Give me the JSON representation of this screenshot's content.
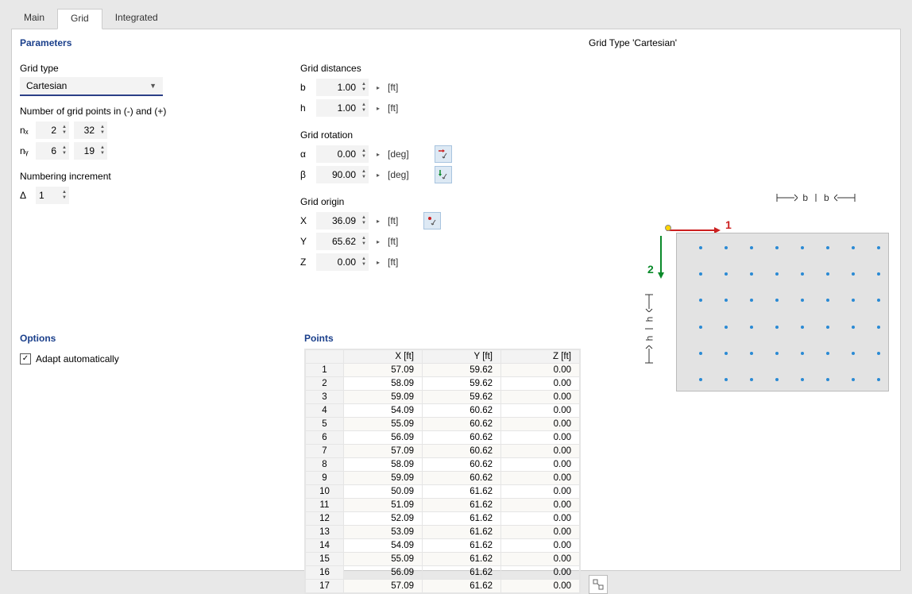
{
  "tabs": {
    "main": "Main",
    "grid": "Grid",
    "integrated": "Integrated",
    "active": "grid"
  },
  "parameters": {
    "title": "Parameters",
    "grid_type_label": "Grid type",
    "grid_type_value": "Cartesian",
    "num_points_label": "Number of grid points in (-) and (+)",
    "nx_label": "nₓ",
    "nx_neg": "2",
    "nx_pos": "32",
    "ny_label": "nᵧ",
    "ny_neg": "6",
    "ny_pos": "19",
    "increment_label": "Numbering increment",
    "delta_label": "Δ",
    "delta_val": "1",
    "distances_label": "Grid distances",
    "b_label": "b",
    "b_val": "1.00",
    "b_unit": "[ft]",
    "h_label": "h",
    "h_val": "1.00",
    "h_unit": "[ft]",
    "rotation_label": "Grid rotation",
    "alpha_label": "α",
    "alpha_val": "0.00",
    "alpha_unit": "[deg]",
    "beta_label": "β",
    "beta_val": "90.00",
    "beta_unit": "[deg]",
    "origin_label": "Grid origin",
    "x_label": "X",
    "x_val": "36.09",
    "x_unit": "[ft]",
    "y_label": "Y",
    "y_val": "65.62",
    "y_unit": "[ft]",
    "z_label": "Z",
    "z_val": "0.00",
    "z_unit": "[ft]"
  },
  "options": {
    "title": "Options",
    "adapt_label": "Adapt automatically",
    "adapt_checked": true
  },
  "points": {
    "title": "Points",
    "col_x": "X [ft]",
    "col_y": "Y [ft]",
    "col_z": "Z [ft]",
    "rows": [
      {
        "n": "1",
        "x": "57.09",
        "y": "59.62",
        "z": "0.00"
      },
      {
        "n": "2",
        "x": "58.09",
        "y": "59.62",
        "z": "0.00"
      },
      {
        "n": "3",
        "x": "59.09",
        "y": "59.62",
        "z": "0.00"
      },
      {
        "n": "4",
        "x": "54.09",
        "y": "60.62",
        "z": "0.00"
      },
      {
        "n": "5",
        "x": "55.09",
        "y": "60.62",
        "z": "0.00"
      },
      {
        "n": "6",
        "x": "56.09",
        "y": "60.62",
        "z": "0.00"
      },
      {
        "n": "7",
        "x": "57.09",
        "y": "60.62",
        "z": "0.00"
      },
      {
        "n": "8",
        "x": "58.09",
        "y": "60.62",
        "z": "0.00"
      },
      {
        "n": "9",
        "x": "59.09",
        "y": "60.62",
        "z": "0.00"
      },
      {
        "n": "10",
        "x": "50.09",
        "y": "61.62",
        "z": "0.00"
      },
      {
        "n": "11",
        "x": "51.09",
        "y": "61.62",
        "z": "0.00"
      },
      {
        "n": "12",
        "x": "52.09",
        "y": "61.62",
        "z": "0.00"
      },
      {
        "n": "13",
        "x": "53.09",
        "y": "61.62",
        "z": "0.00"
      },
      {
        "n": "14",
        "x": "54.09",
        "y": "61.62",
        "z": "0.00"
      },
      {
        "n": "15",
        "x": "55.09",
        "y": "61.62",
        "z": "0.00"
      },
      {
        "n": "16",
        "x": "56.09",
        "y": "61.62",
        "z": "0.00"
      },
      {
        "n": "17",
        "x": "57.09",
        "y": "61.62",
        "z": "0.00"
      }
    ]
  },
  "preview": {
    "title": "Grid Type 'Cartesian'",
    "axis1": "1",
    "axis2": "2",
    "dim_b": "b",
    "dim_h": "h",
    "grid_cols": 8,
    "grid_rows": 6,
    "dot_color": "#2a8ad4",
    "box_bg": "#e3e3e3",
    "axis1_color": "#cc2020",
    "axis2_color": "#0a8a2a"
  }
}
